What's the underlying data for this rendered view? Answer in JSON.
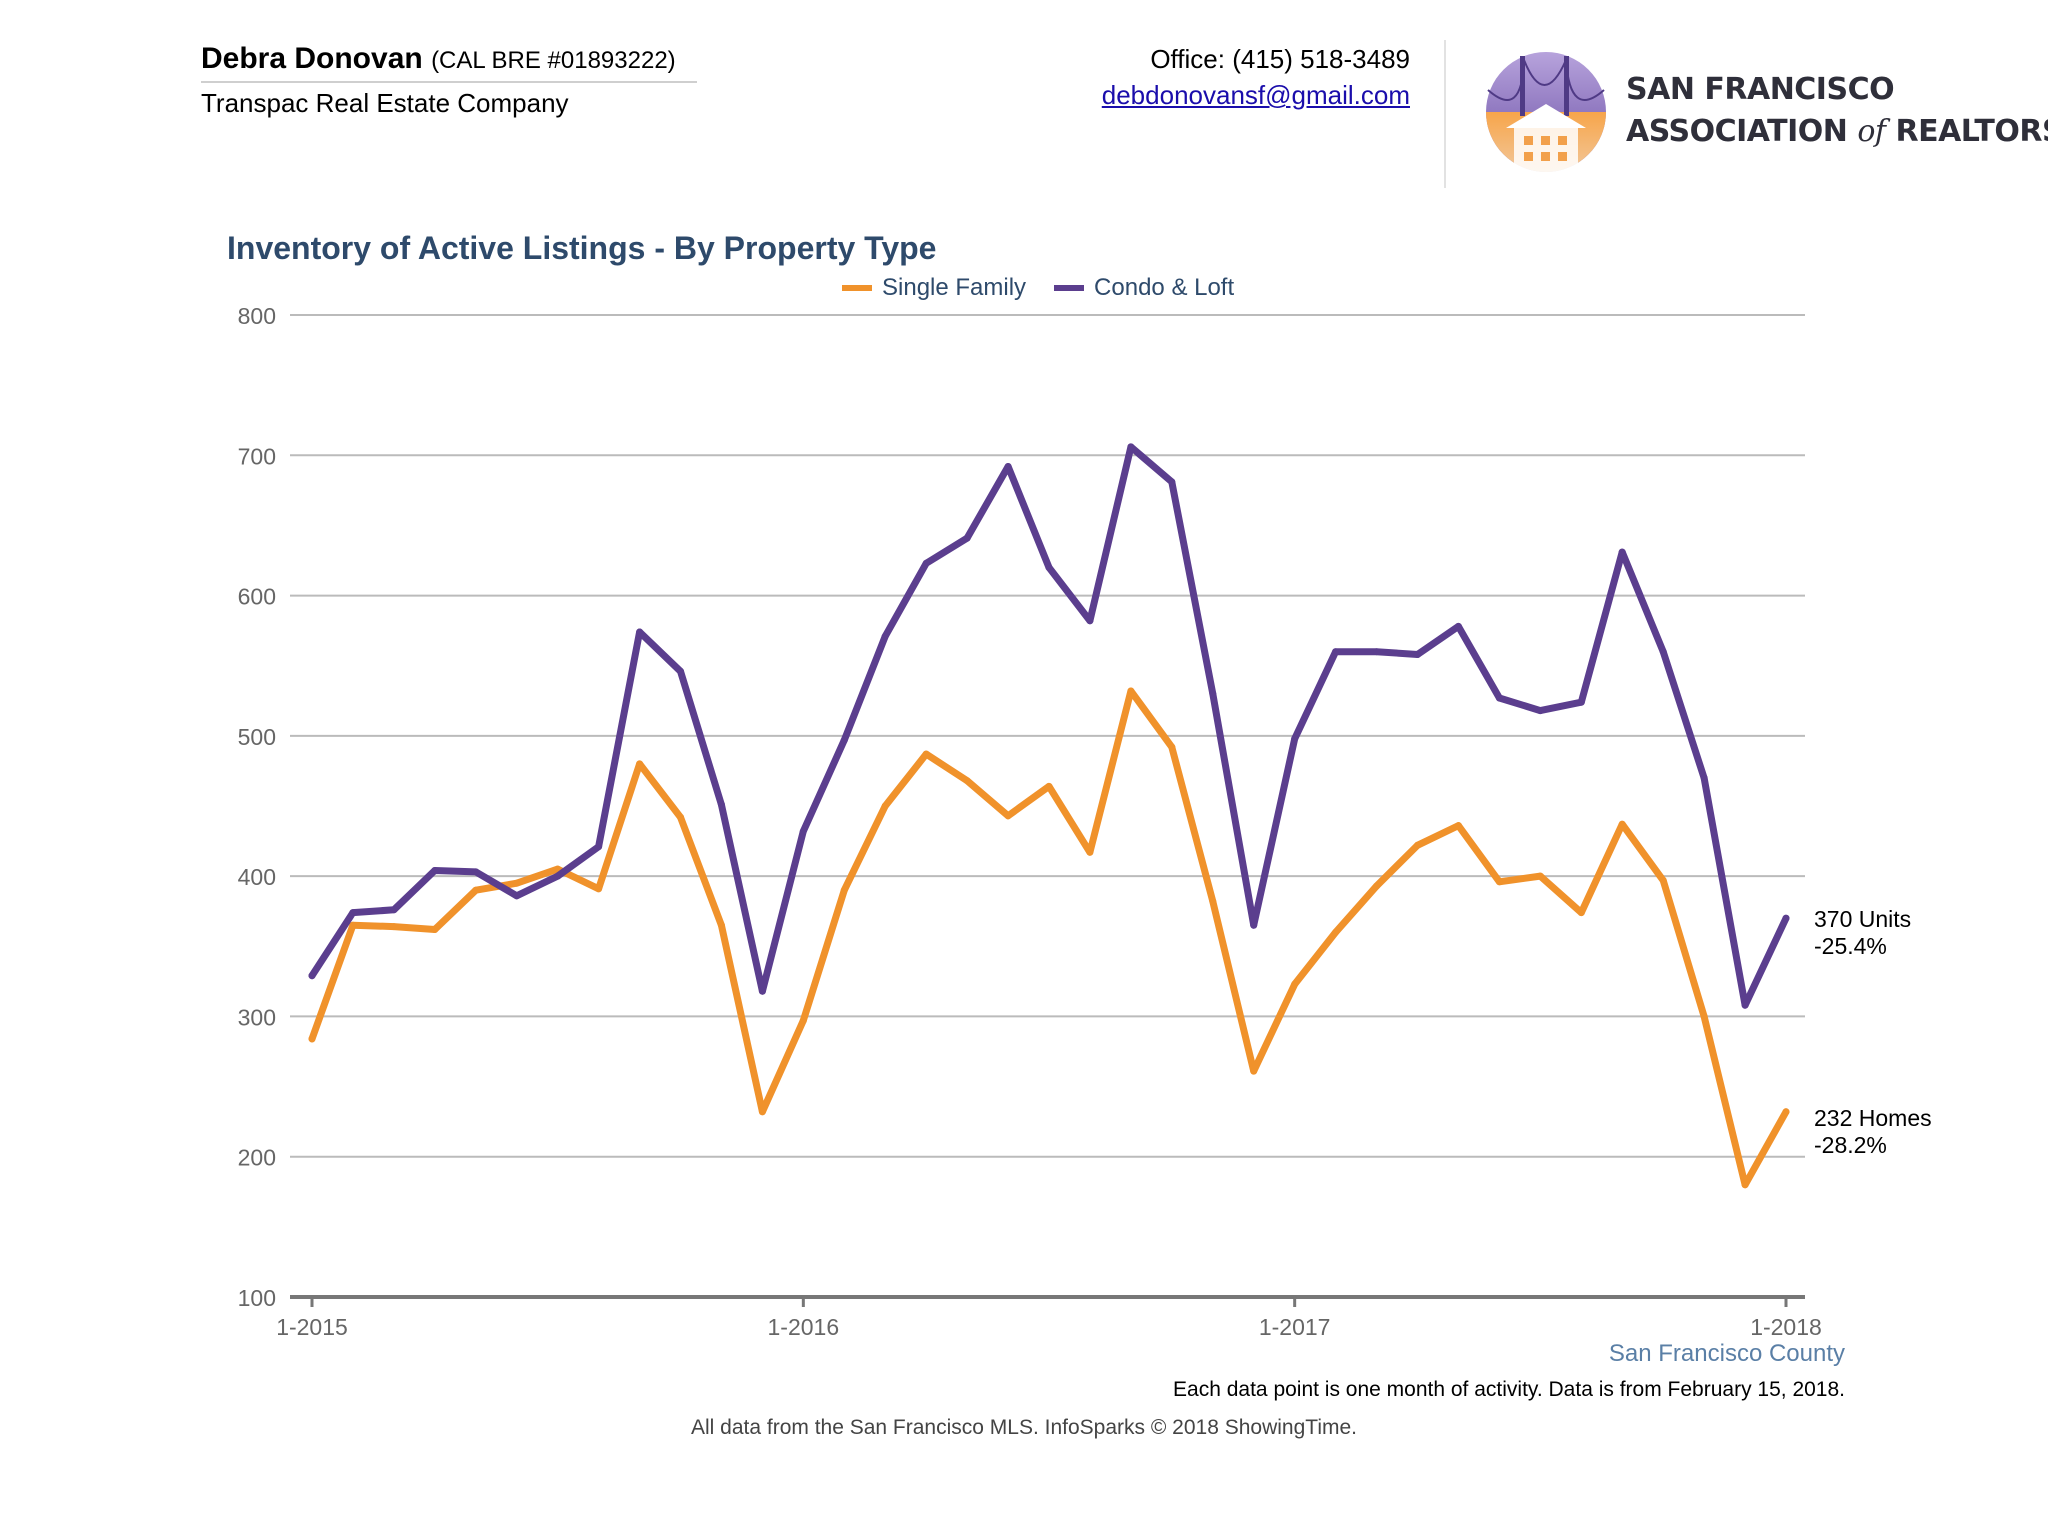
{
  "header": {
    "agent_name": "Debra Donovan",
    "license": "(CAL BRE #01893222)",
    "company": "Transpac Real Estate Company",
    "office_phone": "Office: (415) 518-3489",
    "email": "debdonovansf@gmail.com"
  },
  "logo": {
    "line1": "SAN FRANCISCO",
    "line2_a": "ASSOCIATION",
    "line2_of": "of",
    "line2_b": "REALTORS",
    "trademark": "®",
    "icon": "golden-gate-bridge-houses-logo-icon"
  },
  "colors": {
    "single_family": "#F0922B",
    "condo_loft": "#5B3E8E",
    "title": "#2E4A6B",
    "grid": "#BBBBBB",
    "axis": "#777777"
  },
  "chart_data": {
    "type": "line",
    "title": "Inventory of Active Listings - By Property Type",
    "xlabel": "",
    "ylabel": "",
    "ylim": [
      100,
      800
    ],
    "y_ticks": [
      "100",
      "200",
      "300",
      "400",
      "500",
      "600",
      "700",
      "800"
    ],
    "x_tick_labels": [
      "1-2015",
      "1-2016",
      "1-2017",
      "1-2018"
    ],
    "x_tick_month_index": [
      0,
      12,
      24,
      36
    ],
    "grid": true,
    "legend_position": "top-center",
    "months": 37,
    "series": [
      {
        "name": "Single Family",
        "color": "#F0922B",
        "values": [
          284,
          365,
          364,
          362,
          390,
          395,
          405,
          391,
          480,
          442,
          365,
          232,
          297,
          390,
          450,
          487,
          468,
          443,
          464,
          417,
          532,
          492,
          382,
          261,
          323,
          360,
          393,
          422,
          436,
          396,
          400,
          374,
          437,
          397,
          300,
          180,
          232
        ],
        "end_label_line1": "232 Homes",
        "end_label_line2": "-28.2%"
      },
      {
        "name": "Condo & Loft",
        "color": "#5B3E8E",
        "values": [
          329,
          374,
          376,
          404,
          403,
          386,
          400,
          421,
          574,
          546,
          451,
          318,
          432,
          497,
          571,
          623,
          641,
          692,
          620,
          582,
          706,
          681,
          530,
          365,
          498,
          560,
          560,
          558,
          578,
          527,
          518,
          524,
          631,
          560,
          470,
          308,
          370
        ],
        "end_label_line1": "370 Units",
        "end_label_line2": "-25.4%"
      }
    ]
  },
  "region_label": "San Francisco County",
  "note": "Each data point is one month of activity. Data is from February 15, 2018.",
  "footer": "All data from the San Francisco MLS. InfoSparks © 2018 ShowingTime."
}
